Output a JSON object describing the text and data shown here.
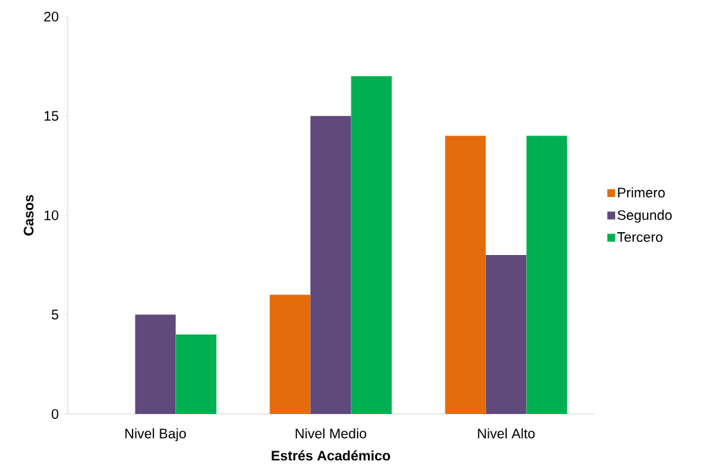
{
  "chart_data": {
    "type": "bar",
    "xlabel": "Estrés Académico",
    "ylabel": "Casos",
    "categories": [
      "Nivel Bajo",
      "Nivel Medio",
      "Nivel Alto"
    ],
    "series": [
      {
        "name": "Primero",
        "color": "#e46c0a",
        "values": [
          0,
          6,
          14
        ]
      },
      {
        "name": "Segundo",
        "color": "#604a7b",
        "values": [
          5,
          15,
          8
        ]
      },
      {
        "name": "Tercero",
        "color": "#00b050",
        "values": [
          4,
          17,
          14
        ]
      }
    ],
    "ylim": [
      0,
      20
    ],
    "yticks": [
      0,
      5,
      10,
      15,
      20
    ],
    "legend": "right"
  }
}
